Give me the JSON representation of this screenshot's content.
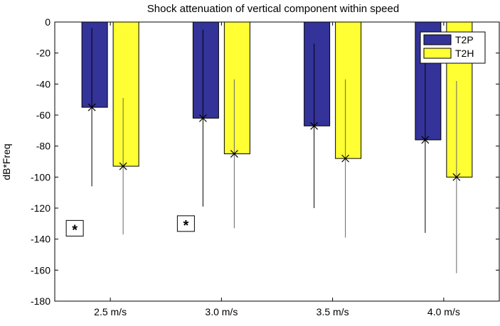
{
  "chart_data": {
    "type": "bar",
    "title": "Shock attenuation of vertical component within speed",
    "xlabel": "",
    "ylabel": "dB*Freq",
    "ylim": [
      -180,
      0
    ],
    "yticks": [
      0,
      -20,
      -40,
      -60,
      -80,
      -100,
      -120,
      -140,
      -160,
      -180
    ],
    "categories": [
      "2.5 m/s",
      "3.0 m/s",
      "3.5 m/s",
      "4.0 m/s"
    ],
    "series": [
      {
        "name": "T2P",
        "color": "#333399",
        "values": [
          -55,
          -62,
          -67,
          -76
        ],
        "err_low": [
          -106,
          -119,
          -120,
          -136
        ],
        "err_high": [
          -4,
          -5,
          -14,
          -16
        ]
      },
      {
        "name": "T2H",
        "color": "#ffff33",
        "values": [
          -93,
          -85,
          -88,
          -100
        ],
        "err_low": [
          -137,
          -133,
          -139,
          -162
        ],
        "err_high": [
          -49,
          -37,
          -37,
          -38
        ]
      }
    ],
    "annotations": [
      {
        "text": "*",
        "category": "2.5 m/s",
        "y": -133
      },
      {
        "text": "*",
        "category": "3.0 m/s",
        "y": -130
      }
    ],
    "legend": "top-right",
    "grid": false
  }
}
